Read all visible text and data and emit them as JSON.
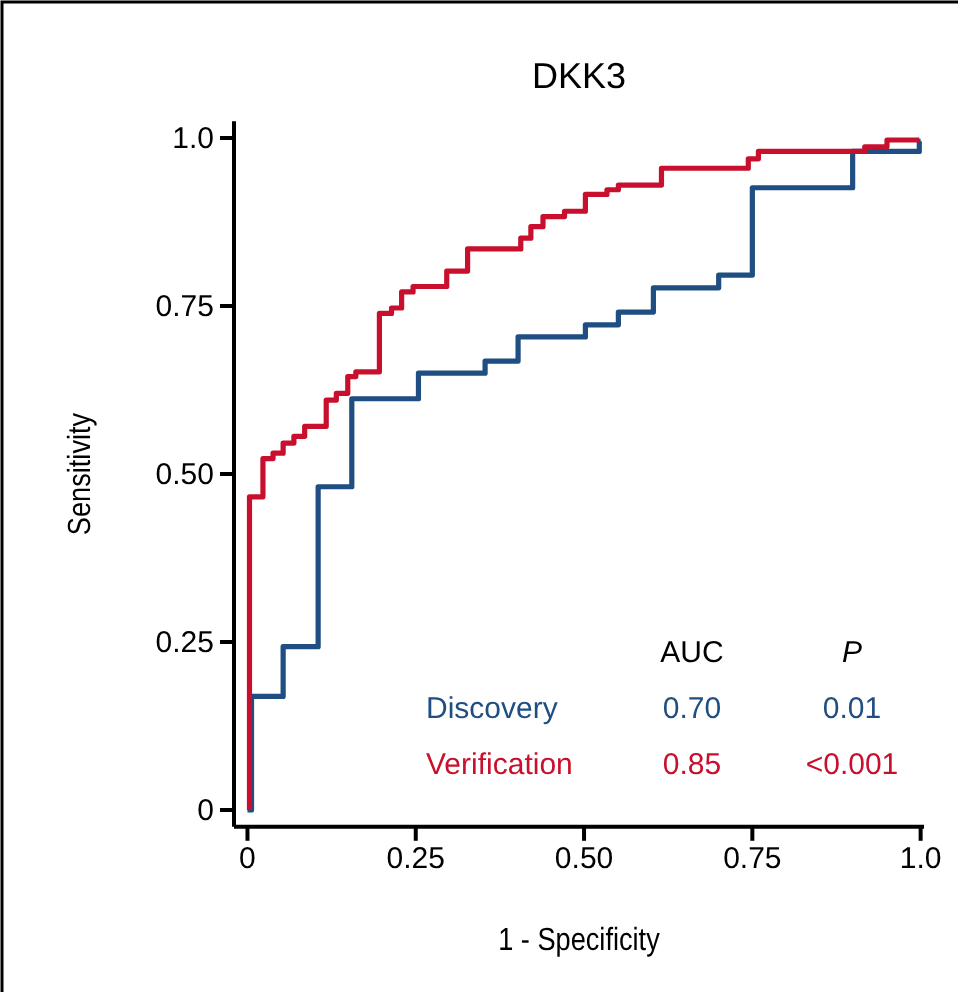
{
  "chart_data": {
    "type": "step",
    "title": "DKK3",
    "xlabel": "1 - Specificity",
    "ylabel": "Sensitivity",
    "xlim": [
      -0.02,
      1.005
    ],
    "ylim": [
      -0.025,
      1.025
    ],
    "xticks": [
      0,
      0.25,
      {
        "value": 0.5,
        "label": "0.50"
      },
      0.75,
      {
        "value": 1,
        "label": "1.0"
      }
    ],
    "yticks": [
      0,
      0.25,
      {
        "value": 0.5,
        "label": "0.50"
      },
      0.75,
      {
        "value": 1,
        "label": "1.0"
      }
    ],
    "legend": "bottom",
    "grid": false,
    "line_style": "solid",
    "marker": "none",
    "annotations": [
      "AUC",
      "P",
      "0.70",
      "0.01",
      "0.85",
      "<0.001"
    ],
    "series": [
      {
        "name": "Discovery",
        "color": "#1f4e82",
        "x": [
          0,
          0.006,
          0.053,
          0.105,
          0.155,
          0.254,
          0.353,
          0.402,
          0.502,
          0.551,
          0.603,
          0.7,
          0.75,
          0.899,
          0.998,
          1
        ],
        "values": [
          0,
          0.169,
          0.243,
          0.481,
          0.612,
          0.65,
          0.668,
          0.704,
          0.722,
          0.741,
          0.777,
          0.796,
          0.926,
          0.98,
          0.995,
          0.995
        ]
      },
      {
        "name": "Verification",
        "color": "#c8102e",
        "x": [
          0.003,
          0.003,
          0.023,
          0.038,
          0.053,
          0.069,
          0.085,
          0.117,
          0.132,
          0.149,
          0.161,
          0.196,
          0.214,
          0.229,
          0.246,
          0.296,
          0.327,
          0.406,
          0.421,
          0.439,
          0.471,
          0.502,
          0.534,
          0.551,
          0.615,
          0.744,
          0.759,
          0.917,
          0.95,
          0.998
        ],
        "values": [
          0,
          0.466,
          0.523,
          0.531,
          0.546,
          0.556,
          0.571,
          0.61,
          0.62,
          0.645,
          0.652,
          0.739,
          0.747,
          0.771,
          0.779,
          0.802,
          0.835,
          0.851,
          0.868,
          0.883,
          0.891,
          0.916,
          0.923,
          0.93,
          0.955,
          0.969,
          0.98,
          0.987,
          0.997,
          0.997
        ]
      }
    ]
  }
}
